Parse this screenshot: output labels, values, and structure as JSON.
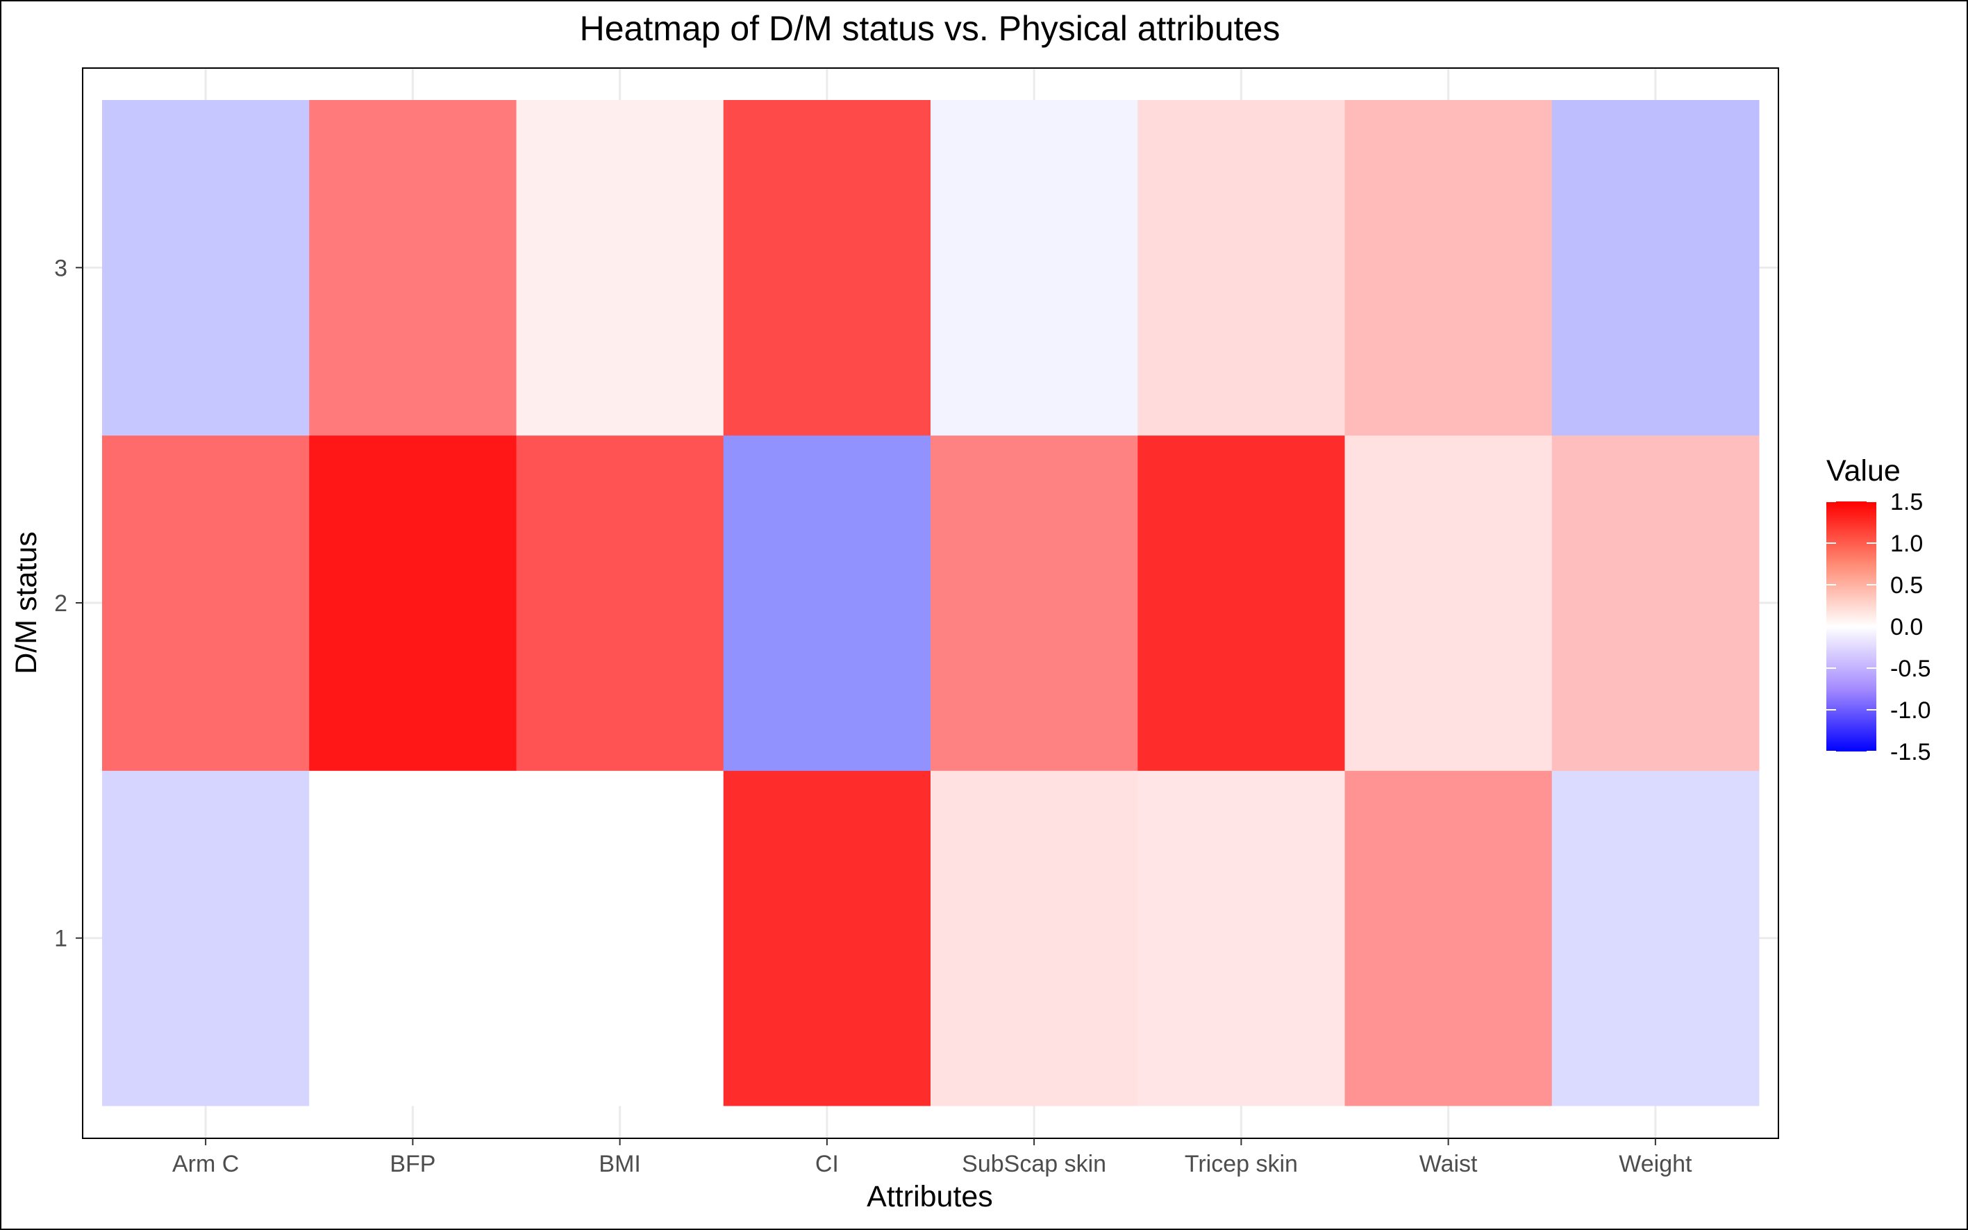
{
  "chart_data": {
    "type": "heatmap",
    "title": "Heatmap of D/M status vs. Physical attributes",
    "xlabel": "Attributes",
    "ylabel": "D/M status",
    "x_categories": [
      "Arm C",
      "BFP",
      "BMI",
      "CI",
      "SubScap skin",
      "Tricep skin",
      "Waist",
      "Weight"
    ],
    "y_categories": [
      "1",
      "2",
      "3"
    ],
    "values": [
      [
        -0.18,
        0.0,
        0.0,
        1.2,
        0.12,
        0.1,
        0.55,
        -0.15
      ],
      [
        0.8,
        1.35,
        0.95,
        -0.55,
        0.65,
        1.2,
        0.12,
        0.3
      ],
      [
        -0.25,
        0.7,
        0.06,
        1.0,
        -0.04,
        0.15,
        0.32,
        -0.3
      ]
    ],
    "color_scale": {
      "low": "#0000ff",
      "mid": "#ffffff",
      "high": "#ff0000",
      "min": -1.5,
      "max": 1.5
    },
    "legend": {
      "title": "Value",
      "ticks": [
        1.5,
        1.0,
        0.5,
        0.0,
        -0.5,
        -1.0,
        -1.5
      ],
      "tick_labels": [
        "1.5",
        "1.0",
        "0.5",
        "0.0",
        "-0.5",
        "-1.0",
        "-1.5"
      ],
      "position": "right"
    },
    "grid": true
  }
}
